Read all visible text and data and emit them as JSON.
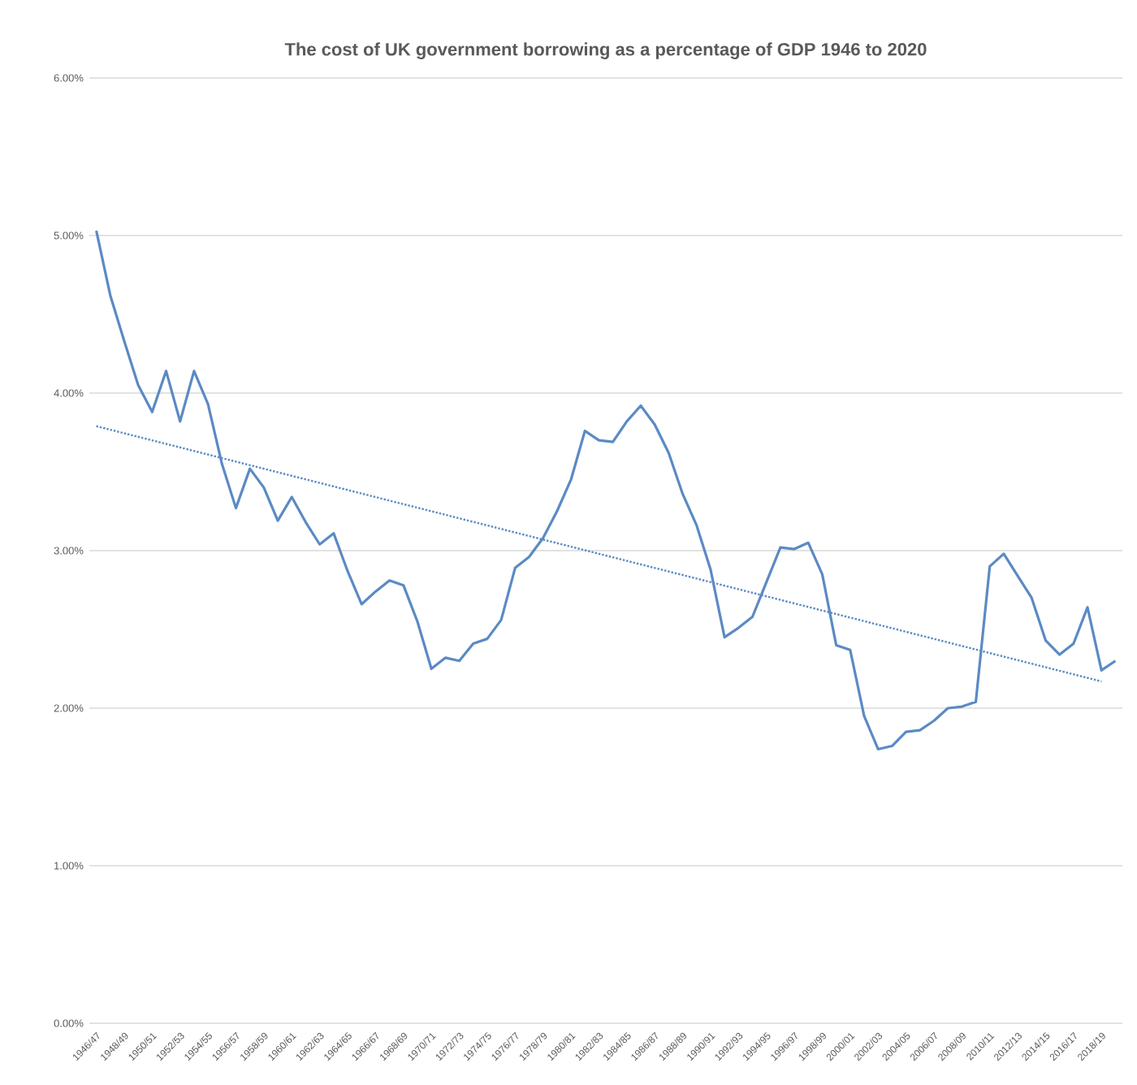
{
  "chart_data": {
    "type": "line",
    "title": "The cost of UK government borrowing as a percentage of GDP 1946 to 2020",
    "categories": [
      "1946/47",
      null,
      "1948/49",
      null,
      "1950/51",
      null,
      "1952/53",
      null,
      "1954/55",
      null,
      "1956/57",
      null,
      "1958/59",
      null,
      "1960/61",
      null,
      "1962/63",
      null,
      "1964/65",
      null,
      "1966/67",
      null,
      "1968/69",
      null,
      "1970/71",
      null,
      "1972/73",
      null,
      "1974/75",
      null,
      "1976/77",
      null,
      "1978/79",
      null,
      "1980/81",
      null,
      "1982/83",
      null,
      "1984/85",
      null,
      "1986/87",
      null,
      "1988/89",
      null,
      "1990/91",
      null,
      "1992/93",
      null,
      "1994/95",
      null,
      "1996/97",
      null,
      "1998/99",
      null,
      "2000/01",
      null,
      "2002/03",
      null,
      "2004/05",
      null,
      "2006/07",
      null,
      "2008/09",
      null,
      "2010/11",
      null,
      "2012/13",
      null,
      "2014/15",
      null,
      "2016/17",
      null,
      "2018/19",
      null
    ],
    "series": [
      {
        "color": "#5b8ac4",
        "line_style": "solid",
        "values": [
          5.03,
          4.62,
          4.33,
          4.05,
          3.88,
          4.14,
          3.82,
          4.14,
          3.93,
          3.55,
          3.27,
          3.52,
          3.4,
          3.19,
          3.34,
          3.18,
          3.04,
          3.11,
          2.87,
          2.66,
          2.74,
          2.81,
          2.78,
          2.55,
          2.25,
          2.32,
          2.3,
          2.41,
          2.44,
          2.56,
          2.89,
          2.96,
          3.08,
          3.25,
          3.45,
          3.76,
          3.7,
          3.69,
          3.82,
          3.92,
          3.8,
          3.62,
          3.36,
          3.16,
          2.88,
          2.45,
          2.51,
          2.58,
          2.8,
          3.02,
          3.01,
          3.05,
          2.85,
          2.4,
          2.37,
          1.95,
          1.74,
          1.76,
          1.85,
          1.86,
          1.92,
          2.0,
          2.01,
          2.04,
          2.9,
          2.98,
          2.84,
          2.7,
          2.43,
          2.34,
          2.41,
          2.64,
          2.24,
          2.3
        ]
      },
      {
        "color": "#5b8ac4",
        "line_style": "dotted",
        "x": [
          "1946/47",
          "2018/19"
        ],
        "values": [
          3.79,
          2.17
        ]
      }
    ],
    "ylim": [
      0,
      6
    ],
    "yticks": [
      {
        "value": 0,
        "label": "0.00%"
      },
      {
        "value": 1,
        "label": "1.00%"
      },
      {
        "value": 2,
        "label": "2.00%"
      },
      {
        "value": 3,
        "label": "3.00%"
      },
      {
        "value": 4,
        "label": "4.00%"
      },
      {
        "value": 5,
        "label": "5.00%"
      },
      {
        "value": 6,
        "label": "6.00%"
      }
    ],
    "grid": "y",
    "legend": false,
    "marker": "none"
  }
}
